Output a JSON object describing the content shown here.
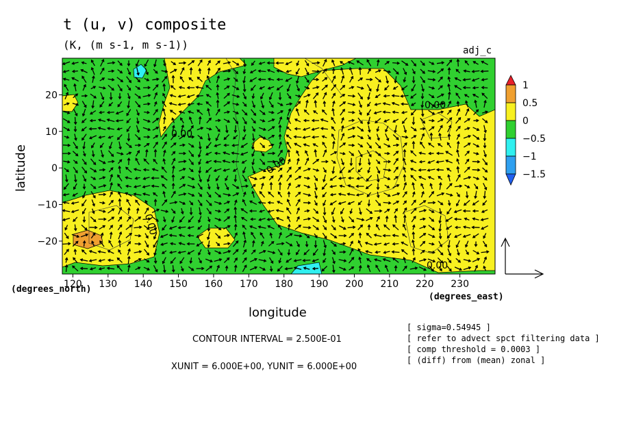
{
  "chart_data": {
    "type": "heatmap",
    "title": "t (u, v) composite",
    "subtitle": "(K, (m s-1, m s-1))",
    "corner_label": "adj_c",
    "xlabel": "longitude",
    "ylabel": "latitude",
    "x_unit_label": "(degrees_east)",
    "y_unit_label": "(degrees_north)",
    "xlim": [
      117,
      240
    ],
    "ylim": [
      -29,
      30
    ],
    "x_ticks": [
      120,
      130,
      140,
      150,
      160,
      170,
      180,
      190,
      200,
      210,
      220,
      230
    ],
    "x_tick_labels": [
      "120",
      "130",
      "140",
      "150",
      "160",
      "170",
      "180",
      "190",
      "200",
      "210",
      "220",
      "230"
    ],
    "y_ticks": [
      -20,
      -10,
      0,
      10,
      20
    ],
    "y_tick_labels": [
      "−20",
      "−10",
      "0",
      "10",
      "20"
    ],
    "colorbar": {
      "labels": [
        "1",
        "0.5",
        "0",
        "−0.5",
        "−1",
        "−1.5"
      ],
      "levels": [
        1,
        0.5,
        0,
        -0.5,
        -1,
        -1.5
      ],
      "colors": [
        "#e8202a",
        "#f0a030",
        "#f8f020",
        "#30d030",
        "#30f0f0",
        "#2fa0f0",
        "#2060f0"
      ]
    },
    "contour_labels": [
      "0.00",
      "0.00",
      "0.00",
      "0.00",
      "0.00"
    ],
    "contour_interval_text": "CONTOUR INTERVAL = 2.500E-01",
    "unit_vector_text": "XUNIT = 6.000E+00, YUNIT = 6.000E+00",
    "notes": [
      "[ sigma=0.54945 ]",
      "[ refer to advect spct filtering data ]",
      "[ comp threshold = 0.0003 ]",
      "[ (diff) from (mean) zonal ]"
    ],
    "regions": [
      {
        "level": "-0.5 to 0",
        "description": "green background over most of domain"
      },
      {
        "level": "0 to 0.5",
        "description": "yellow: west Pacific north 12-28N 130-165E, central-east Pacific 178-240E, southwest 117-143E"
      },
      {
        "level": "0.5 to 1",
        "description": "orange patch near 120-127E, 21S"
      },
      {
        "level": "-1 to -0.5",
        "description": "cyan patches near 139E 25N and 185E 28S"
      }
    ]
  }
}
